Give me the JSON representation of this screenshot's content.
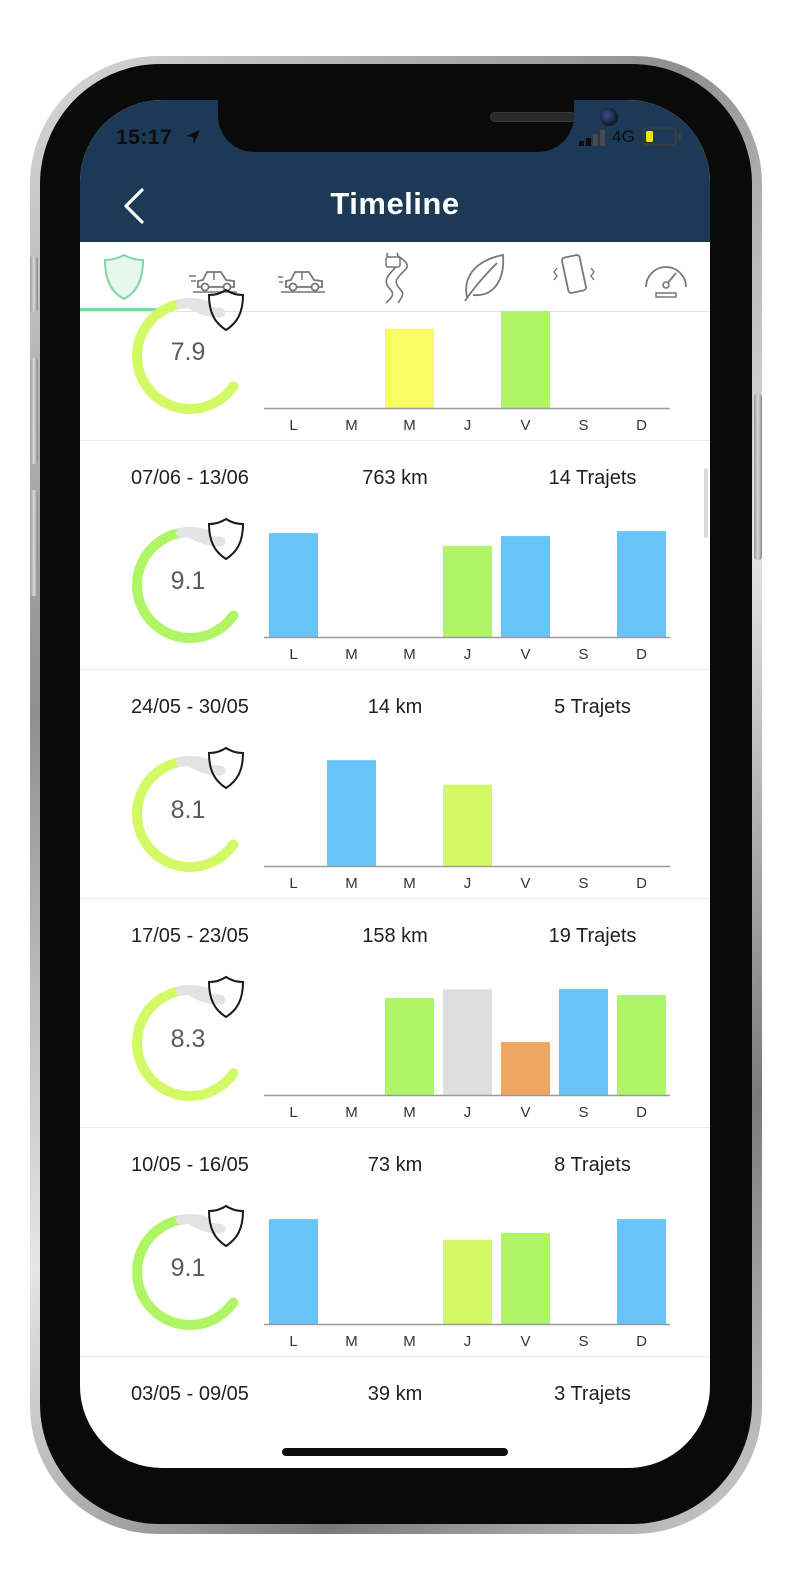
{
  "status_bar": {
    "time": "15:17",
    "network": "4G"
  },
  "nav": {
    "title": "Timeline"
  },
  "tabs": [
    "shield-icon",
    "car-icon",
    "car-braking-icon",
    "curvy-road-icon",
    "leaf-icon",
    "phone-vibrate-icon",
    "speedometer-icon"
  ],
  "day_labels": [
    "L",
    "M",
    "M",
    "J",
    "V",
    "S",
    "D"
  ],
  "colors": {
    "header": "#1c3a55",
    "tab_active": "#7ed6a5",
    "blue": "#68c4f6",
    "green": "#b0f565",
    "yellow_green": "#d3fa66",
    "yellow": "#f8fd64",
    "grey": "#dedede",
    "orange": "#efa660",
    "gauge_track": "#e3e3e3"
  },
  "weeks": [
    {
      "date": "",
      "km": "",
      "trips": "",
      "score": "7.9",
      "score_value": 7.9,
      "gauge_color": "#d3fa66",
      "bars": [
        {
          "day": "L",
          "value": 0,
          "color": null
        },
        {
          "day": "M",
          "value": 0,
          "color": null
        },
        {
          "day": "M",
          "value": 0.81,
          "color": "yellow"
        },
        {
          "day": "J",
          "value": 0,
          "color": null
        },
        {
          "day": "V",
          "value": 0.99,
          "color": "green"
        },
        {
          "day": "S",
          "value": 0,
          "color": null
        },
        {
          "day": "D",
          "value": 0,
          "color": null
        }
      ]
    },
    {
      "date": "07/06 - 13/06",
      "km": "763 km",
      "trips": "14 Trajets",
      "score": "9.1",
      "score_value": 9.1,
      "gauge_color": "#b0f565",
      "bars": [
        {
          "day": "L",
          "value": 1.06,
          "color": "blue"
        },
        {
          "day": "M",
          "value": 0,
          "color": null
        },
        {
          "day": "M",
          "value": 0,
          "color": null
        },
        {
          "day": "J",
          "value": 0.93,
          "color": "green"
        },
        {
          "day": "V",
          "value": 1.03,
          "color": "blue"
        },
        {
          "day": "S",
          "value": 0,
          "color": null
        },
        {
          "day": "D",
          "value": 1.08,
          "color": "blue"
        }
      ]
    },
    {
      "date": "24/05 - 30/05",
      "km": "14 km",
      "trips": "5 Trajets",
      "score": "8.1",
      "score_value": 8.1,
      "gauge_color": "#d3fa66",
      "bars": [
        {
          "day": "L",
          "value": 0,
          "color": null
        },
        {
          "day": "M",
          "value": 1.08,
          "color": "blue"
        },
        {
          "day": "M",
          "value": 0,
          "color": null
        },
        {
          "day": "J",
          "value": 0.83,
          "color": "yellow_green"
        },
        {
          "day": "V",
          "value": 0,
          "color": null
        },
        {
          "day": "S",
          "value": 0,
          "color": null
        },
        {
          "day": "D",
          "value": 0,
          "color": null
        }
      ]
    },
    {
      "date": "17/05 - 23/05",
      "km": "158 km",
      "trips": "19 Trajets",
      "score": "8.3",
      "score_value": 8.3,
      "gauge_color": "#d3fa66",
      "bars": [
        {
          "day": "L",
          "value": 0,
          "color": null
        },
        {
          "day": "M",
          "value": 0,
          "color": null
        },
        {
          "day": "M",
          "value": 0.99,
          "color": "green"
        },
        {
          "day": "J",
          "value": 1.08,
          "color": "grey"
        },
        {
          "day": "V",
          "value": 0.54,
          "color": "orange"
        },
        {
          "day": "S",
          "value": 1.08,
          "color": "blue"
        },
        {
          "day": "D",
          "value": 1.02,
          "color": "green"
        }
      ]
    },
    {
      "date": "10/05 - 16/05",
      "km": "73 km",
      "trips": "8 Trajets",
      "score": "9.1",
      "score_value": 9.1,
      "gauge_color": "#b0f565",
      "bars": [
        {
          "day": "L",
          "value": 1.07,
          "color": "blue"
        },
        {
          "day": "M",
          "value": 0,
          "color": null
        },
        {
          "day": "M",
          "value": 0,
          "color": null
        },
        {
          "day": "J",
          "value": 0.86,
          "color": "yellow_green"
        },
        {
          "day": "V",
          "value": 0.93,
          "color": "green"
        },
        {
          "day": "S",
          "value": 0,
          "color": null
        },
        {
          "day": "D",
          "value": 1.07,
          "color": "blue"
        }
      ]
    },
    {
      "date": "03/05 - 09/05",
      "km": "39 km",
      "trips": "3 Trajets",
      "score": "",
      "score_value": null,
      "gauge_color": "#d3fa66",
      "bars": []
    }
  ]
}
